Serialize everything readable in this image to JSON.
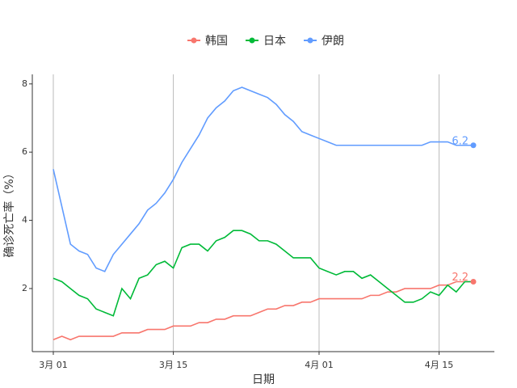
{
  "chart_data": {
    "type": "line",
    "xlabel": "日期",
    "ylabel": "确诊死亡率（%）",
    "x": [
      1,
      2,
      3,
      4,
      5,
      6,
      7,
      8,
      9,
      10,
      11,
      12,
      13,
      14,
      15,
      16,
      17,
      18,
      19,
      20,
      21,
      22,
      23,
      24,
      25,
      26,
      27,
      28,
      29,
      30,
      31,
      32,
      33,
      34,
      35,
      36,
      37,
      38,
      39,
      40,
      41,
      42,
      43,
      44,
      45,
      46,
      47,
      48,
      49,
      50
    ],
    "series": [
      {
        "name": "韩国",
        "color": "#F8766D",
        "values": [
          0.5,
          0.6,
          0.5,
          0.6,
          0.6,
          0.6,
          0.6,
          0.6,
          0.7,
          0.7,
          0.7,
          0.8,
          0.8,
          0.8,
          0.9,
          0.9,
          0.9,
          1.0,
          1.0,
          1.1,
          1.1,
          1.2,
          1.2,
          1.2,
          1.3,
          1.4,
          1.4,
          1.5,
          1.5,
          1.6,
          1.6,
          1.7,
          1.7,
          1.7,
          1.7,
          1.7,
          1.7,
          1.8,
          1.8,
          1.9,
          1.9,
          2.0,
          2.0,
          2.0,
          2.0,
          2.1,
          2.1,
          2.2,
          2.2,
          2.2
        ]
      },
      {
        "name": "日本",
        "color": "#00BA38",
        "values": [
          2.3,
          2.2,
          2.0,
          1.8,
          1.7,
          1.4,
          1.3,
          1.2,
          2.0,
          1.7,
          2.3,
          2.4,
          2.7,
          2.8,
          2.6,
          3.2,
          3.3,
          3.3,
          3.1,
          3.4,
          3.5,
          3.7,
          3.7,
          3.6,
          3.4,
          3.4,
          3.3,
          3.1,
          2.9,
          2.9,
          2.9,
          2.6,
          2.5,
          2.4,
          2.5,
          2.5,
          2.3,
          2.4,
          2.2,
          2.0,
          1.8,
          1.6,
          1.6,
          1.7,
          1.9,
          1.8,
          2.1,
          1.9,
          2.2,
          2.2
        ]
      },
      {
        "name": "伊朗",
        "color": "#619CFF",
        "values": [
          5.5,
          4.4,
          3.3,
          3.1,
          3.0,
          2.6,
          2.5,
          3.0,
          3.3,
          3.6,
          3.9,
          4.3,
          4.5,
          4.8,
          5.2,
          5.7,
          6.1,
          6.5,
          7.0,
          7.3,
          7.5,
          7.8,
          7.9,
          7.8,
          7.7,
          7.6,
          7.4,
          7.1,
          6.9,
          6.6,
          6.5,
          6.4,
          6.3,
          6.2,
          6.2,
          6.2,
          6.2,
          6.2,
          6.2,
          6.2,
          6.2,
          6.2,
          6.2,
          6.2,
          6.3,
          6.3,
          6.3,
          6.2,
          6.2,
          6.2
        ]
      }
    ],
    "xlim": [
      -1.45,
      52.45
    ],
    "xticks": [
      {
        "value": 1,
        "label": "3月 01"
      },
      {
        "value": 15,
        "label": "3月 15"
      },
      {
        "value": 32,
        "label": "4月 01"
      },
      {
        "value": 46,
        "label": "4月 15"
      }
    ],
    "ylim": [
      0.15,
      8.28
    ],
    "yticks": [
      2,
      4,
      6,
      8
    ],
    "grid": "x",
    "legend": "top"
  }
}
